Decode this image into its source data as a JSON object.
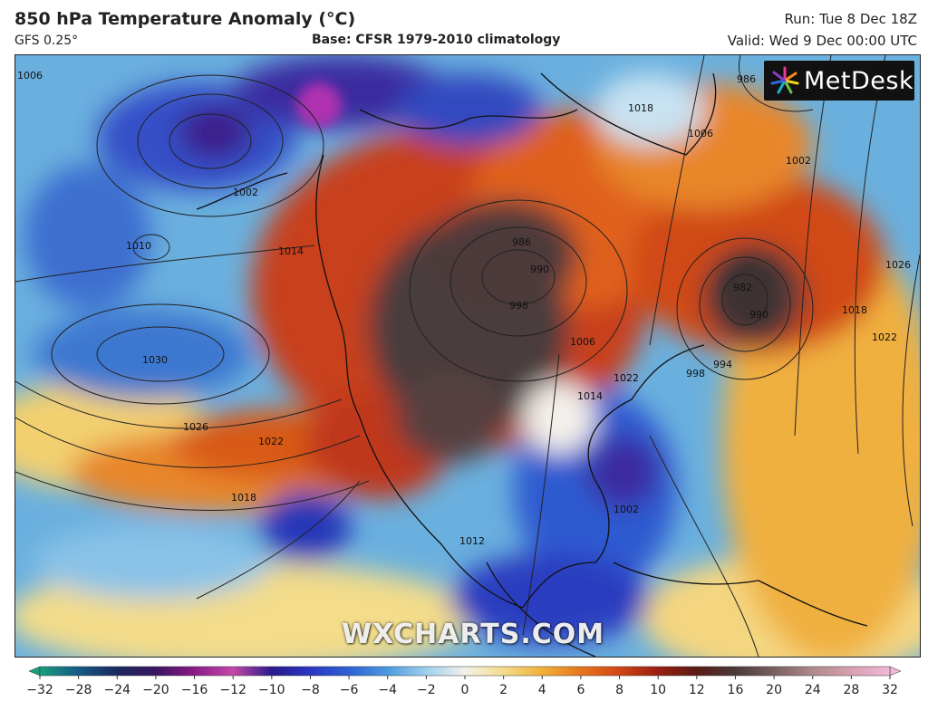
{
  "header": {
    "title": "850 hPa Temperature Anomaly (°C)",
    "model": "GFS 0.25°",
    "base": "Base: CFSR 1979-2010 climatology",
    "run": "Run: Tue 8 Dec 18Z",
    "valid": "Valid: Wed 9 Dec 00:00 UTC"
  },
  "logo": {
    "text": "MetDesk",
    "icon": "metdesk-star-icon"
  },
  "watermark": "WXCHARTS.COM",
  "map": {
    "isobar_labels": [
      "1006",
      "1002",
      "1010",
      "1014",
      "1030",
      "1026",
      "1022",
      "1018",
      "986",
      "990",
      "998",
      "1006",
      "1018",
      "1006",
      "1002",
      "986",
      "994",
      "998",
      "1002",
      "1018",
      "1022",
      "1026",
      "982",
      "990",
      "1014",
      "1022",
      "1012"
    ]
  },
  "colorbar": {
    "ticks": [
      "−32",
      "−28",
      "−24",
      "−20",
      "−16",
      "−12",
      "−10",
      "−8",
      "−6",
      "−4",
      "−2",
      "0",
      "2",
      "4",
      "6",
      "8",
      "10",
      "12",
      "16",
      "20",
      "24",
      "28",
      "32"
    ],
    "colors": [
      "#1a9e7a",
      "#155a86",
      "#1a2a5e",
      "#3a1560",
      "#8a1a8a",
      "#c44aa8",
      "#2a1a8c",
      "#2b36c4",
      "#2f62d6",
      "#4d9ae0",
      "#9fd0ec",
      "#f2f2ea",
      "#f5dc8a",
      "#f0b03a",
      "#e6761e",
      "#d24614",
      "#9a1e12",
      "#5a1c14",
      "#4a3a3a",
      "#7a6060",
      "#b08a8a",
      "#d8a0b0",
      "#f0b8d8"
    ]
  }
}
